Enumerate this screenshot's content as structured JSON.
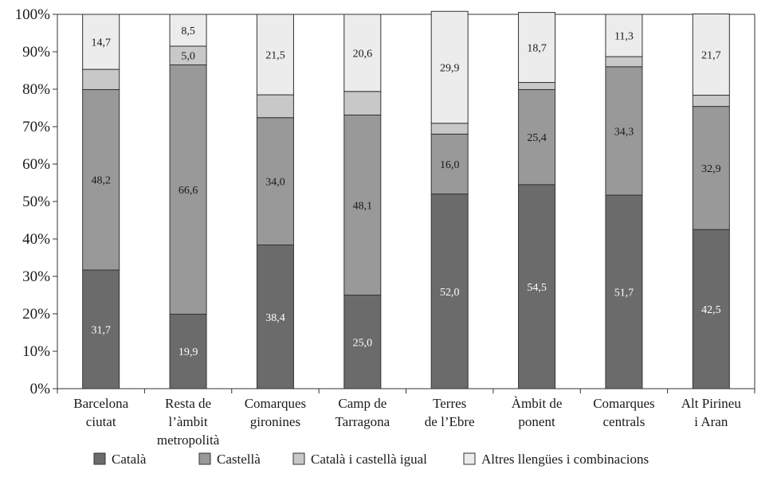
{
  "chart_data": {
    "type": "bar",
    "stacked": true,
    "percent": true,
    "categories": [
      [
        "Barcelona",
        "ciutat"
      ],
      [
        "Resta de",
        "l’àmbit",
        "metropolità"
      ],
      [
        "Comarques",
        "gironines"
      ],
      [
        "Camp de",
        "Tarragona"
      ],
      [
        "Terres",
        "de l’Ebre"
      ],
      [
        "Àmbit de",
        "ponent"
      ],
      [
        "Comarques",
        "centrals"
      ],
      [
        "Alt Pirineu",
        "i Aran"
      ]
    ],
    "series": [
      {
        "name": "Català",
        "color": "#6b6b6b",
        "values": [
          31.7,
          19.9,
          38.4,
          25.0,
          52.0,
          54.5,
          51.7,
          42.5
        ],
        "labels": [
          "31,7",
          "19,9",
          "38,4",
          "25,0",
          "52,0",
          "54,5",
          "51,7",
          "42,5"
        ]
      },
      {
        "name": "Castellà",
        "color": "#999999",
        "values": [
          48.2,
          66.6,
          34.0,
          48.1,
          16.0,
          25.4,
          34.3,
          32.9
        ],
        "labels": [
          "48,2",
          "66,6",
          "34,0",
          "48,1",
          "16,0",
          "25,4",
          "34,3",
          "32,9"
        ]
      },
      {
        "name": "Català i castellà igual",
        "color": "#c8c8c8",
        "values": [
          5.4,
          5.0,
          6.1,
          6.3,
          2.9,
          1.9,
          2.7,
          3.0
        ],
        "labels": [
          "",
          "5,0",
          "",
          "",
          "",
          "",
          "",
          ""
        ]
      },
      {
        "name": "Altres llengües i combinacions",
        "color": "#ececec",
        "values": [
          14.7,
          8.5,
          21.5,
          20.6,
          29.9,
          18.7,
          11.3,
          21.7
        ],
        "labels": [
          "14,7",
          "8,5",
          "21,5",
          "20,6",
          "29,9",
          "18,7",
          "11,3",
          "21,7"
        ]
      }
    ],
    "label_colors": [
      "#ffffff",
      "#1a1a1a",
      "#1a1a1a",
      "#1a1a1a"
    ],
    "ylim": [
      0,
      100
    ],
    "yticks": [
      "0%",
      "10%",
      "20%",
      "30%",
      "40%",
      "50%",
      "60%",
      "70%",
      "80%",
      "90%",
      "100%"
    ],
    "grid": false,
    "legend": "bottom",
    "title": "",
    "xlabel": "",
    "ylabel": ""
  }
}
